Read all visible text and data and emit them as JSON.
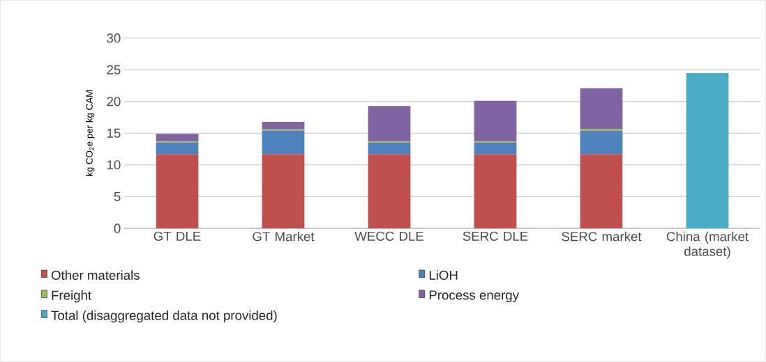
{
  "chart_data": {
    "type": "bar",
    "stacked": true,
    "ylabel": "kg CO$_{2}$e per kg CAM",
    "categories": [
      "GT DLE",
      "GT Market",
      "WECC DLE",
      "SERC DLE",
      "SERC market",
      "China (market dataset)"
    ],
    "series": [
      {
        "name": "Other materials",
        "color": "#c0504d",
        "values": [
          11.7,
          11.7,
          11.7,
          11.7,
          11.7,
          null
        ]
      },
      {
        "name": "LiOH",
        "color": "#4f81bd",
        "values": [
          1.8,
          3.7,
          1.8,
          1.8,
          3.7,
          null
        ]
      },
      {
        "name": "Freight",
        "color": "#9bbb59",
        "values": [
          0.2,
          0.2,
          0.2,
          0.2,
          0.3,
          null
        ]
      },
      {
        "name": "Process energy",
        "color": "#8064a2",
        "values": [
          1.2,
          1.2,
          5.6,
          6.4,
          6.4,
          null
        ]
      },
      {
        "name": "Total (disaggregated data not provided)",
        "color": "#4bacc6",
        "values": [
          null,
          null,
          null,
          null,
          null,
          24.5
        ]
      }
    ],
    "ylim": [
      0,
      30
    ],
    "yticks": [
      0,
      5,
      10,
      15,
      20,
      25,
      30
    ],
    "grid": "y",
    "legend": "bottom"
  }
}
